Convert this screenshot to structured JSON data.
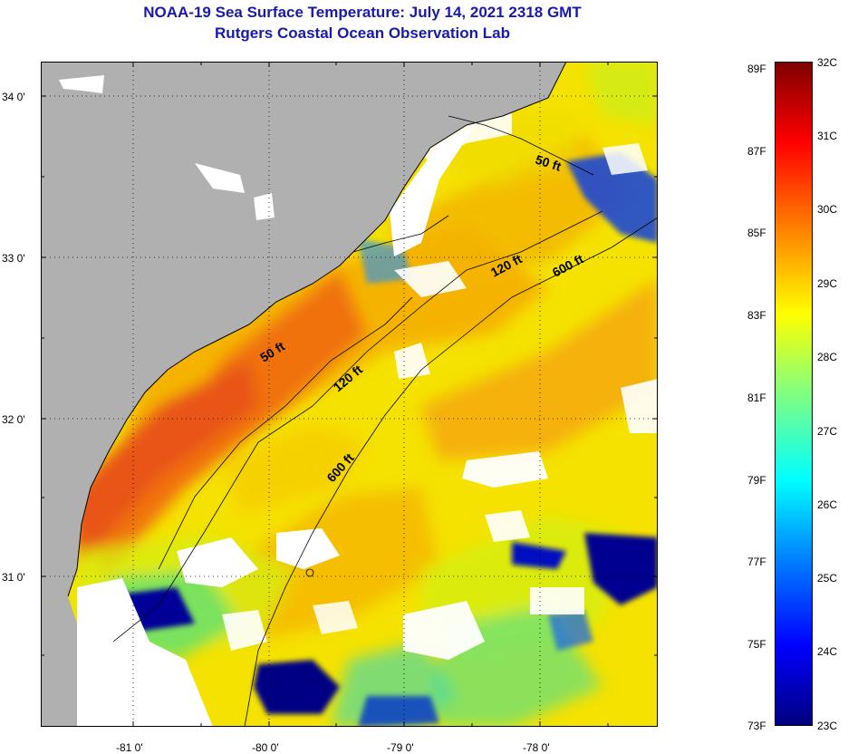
{
  "title": "NOAA-19 Sea Surface Temperature:  July 14, 2021 2318 GMT",
  "subtitle": "Rutgers Coastal Ocean Observation Lab",
  "map": {
    "lat_labels": [
      "34 0'",
      "33 0'",
      "32 0'",
      "31 0'"
    ],
    "lon_labels": [
      "-81 0'",
      "-80 0'",
      "-79 0'",
      "-78 0'"
    ],
    "contour_labels": [
      "50 ft",
      "120 ft",
      "600 ft",
      "50 ft",
      "120 ft",
      "600 ft"
    ]
  },
  "colorbar": {
    "celsius": [
      "32C",
      "31C",
      "30C",
      "29C",
      "28C",
      "27C",
      "26C",
      "25C",
      "24C",
      "23C"
    ],
    "fahrenheit": [
      "89F",
      "87F",
      "85F",
      "83F",
      "81F",
      "79F",
      "77F",
      "75F",
      "73F"
    ]
  },
  "colors": {
    "land": "#b0b0b0",
    "cloud": "#ffffff",
    "title": "#1a1aa8"
  }
}
